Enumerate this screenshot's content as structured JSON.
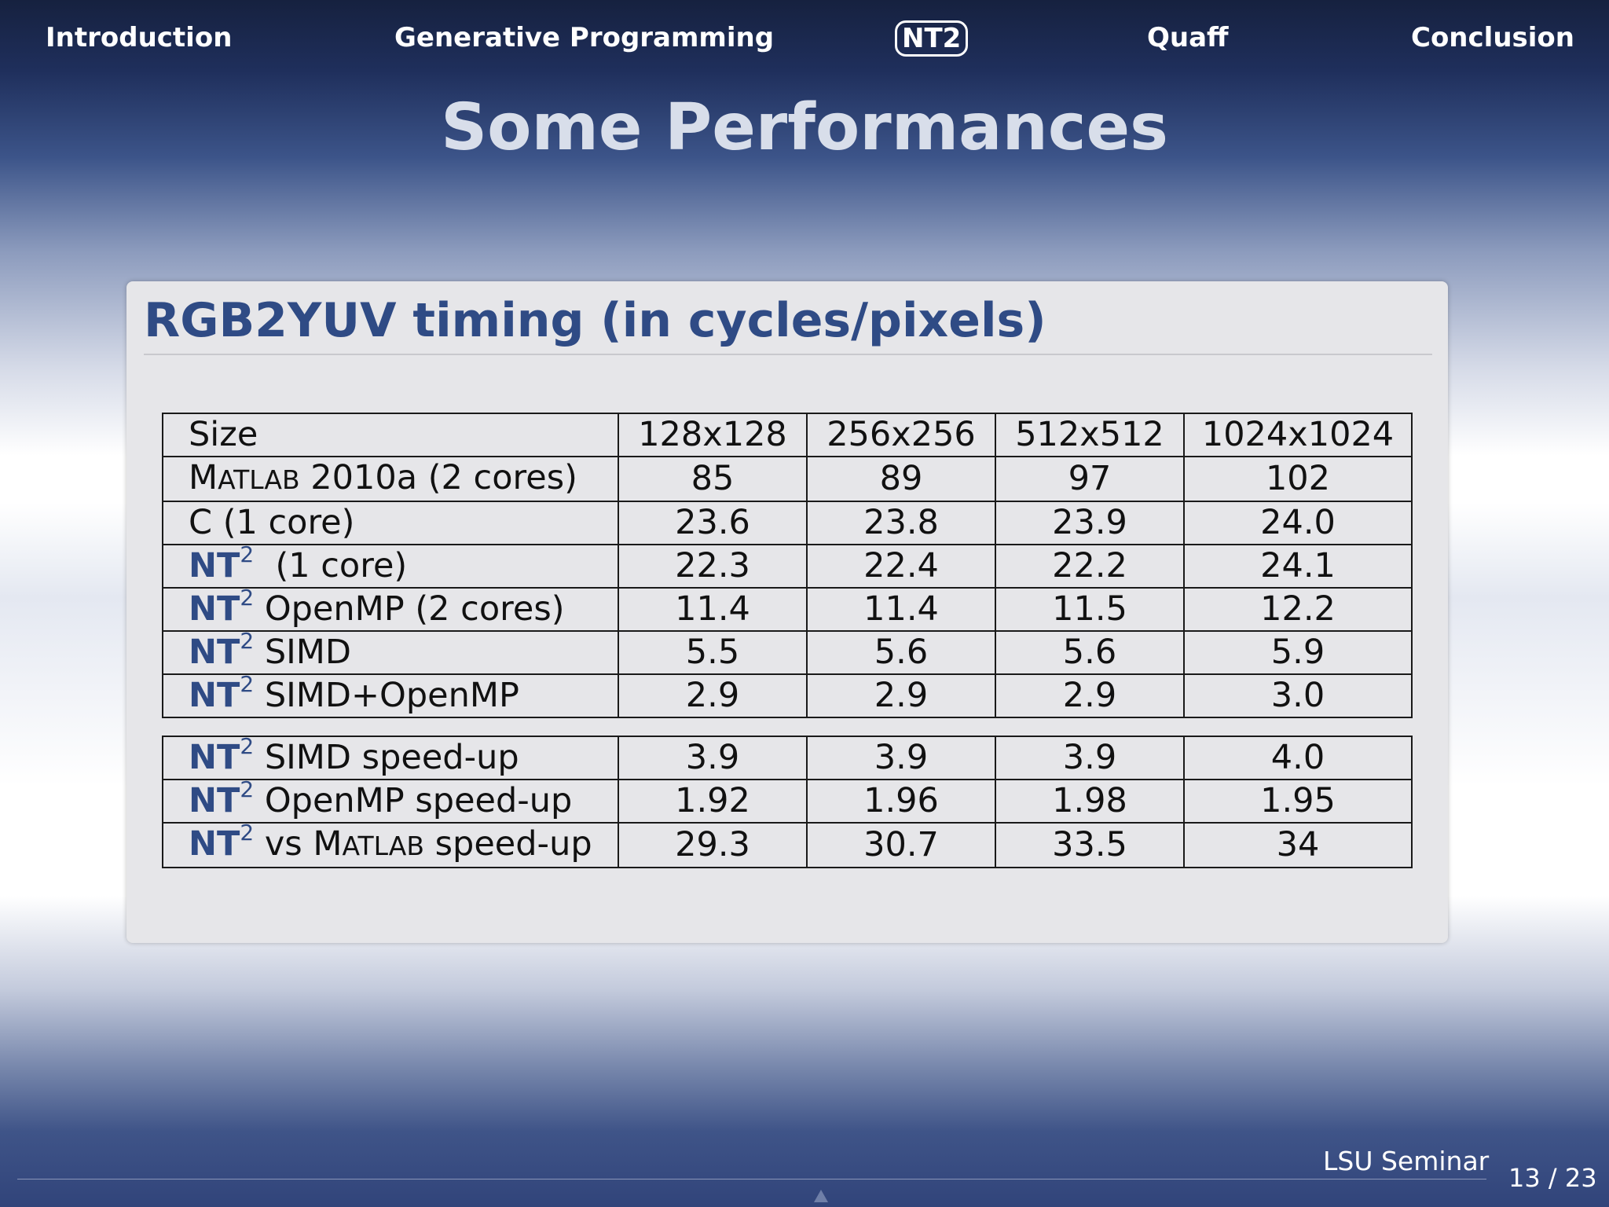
{
  "nav": {
    "items": [
      {
        "label": "Introduction",
        "active": false
      },
      {
        "label": "Generative Programming",
        "active": false
      },
      {
        "label": "NT2",
        "active": true
      },
      {
        "label": "Quaff",
        "active": false
      },
      {
        "label": "Conclusion",
        "active": false
      }
    ]
  },
  "slide": {
    "title": "Some Performances"
  },
  "block": {
    "title": "RGB2YUV timing (in cycles/pixels)"
  },
  "table": {
    "header": {
      "label": "Size",
      "columns": [
        "128x128",
        "256x256",
        "512x512",
        "1024x1024"
      ]
    },
    "brand": "NT",
    "brand_sup": "2",
    "matlab": {
      "first": "M",
      "rest": "ATLAB"
    },
    "timing_rows": [
      {
        "prefix": "",
        "suffix": " 2010a (2 cores)",
        "values": [
          "85",
          "89",
          "97",
          "102"
        ]
      },
      {
        "prefix": "C (1 core)",
        "values": [
          "23.6",
          "23.8",
          "23.9",
          "24.0"
        ]
      },
      {
        "suffix": "  (1 core)",
        "values": [
          "22.3",
          "22.4",
          "22.2",
          "24.1"
        ]
      },
      {
        "suffix": " OpenMP (2 cores)",
        "values": [
          "11.4",
          "11.4",
          "11.5",
          "12.2"
        ]
      },
      {
        "suffix": " SIMD",
        "values": [
          "5.5",
          "5.6",
          "5.6",
          "5.9"
        ]
      },
      {
        "suffix": " SIMD+OpenMP",
        "values": [
          "2.9",
          "2.9",
          "2.9",
          "3.0"
        ]
      }
    ],
    "speedup_rows": [
      {
        "suffix": " SIMD speed-up",
        "values": [
          "3.9",
          "3.9",
          "3.9",
          "4.0"
        ]
      },
      {
        "suffix": " OpenMP speed-up",
        "values": [
          "1.92",
          "1.96",
          "1.98",
          "1.95"
        ]
      },
      {
        "mid": " vs ",
        "suffix": " speed-up",
        "values": [
          "29.3",
          "30.7",
          "33.5",
          "34"
        ]
      }
    ]
  },
  "footer": {
    "label": "LSU Seminar",
    "page": "13 / 23"
  }
}
